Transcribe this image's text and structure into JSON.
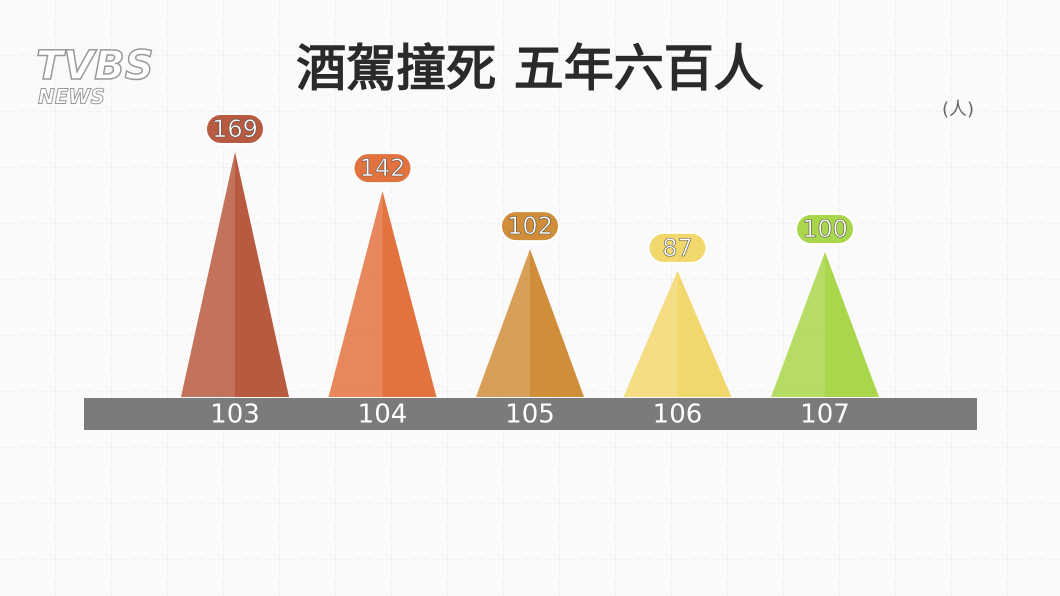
{
  "logo": [
    "TVBS",
    "NEWS"
  ],
  "chart_data": {
    "type": "pyramid",
    "title": "酒駕撞死 五年六百人",
    "unit": "(人)",
    "categories": [
      "103",
      "104",
      "105",
      "106",
      "107"
    ],
    "values": [
      169,
      142,
      102,
      87,
      100
    ],
    "colors": [
      "#b85a3f",
      "#e2733f",
      "#d08e3a",
      "#f2d76c",
      "#a9d64b"
    ]
  }
}
